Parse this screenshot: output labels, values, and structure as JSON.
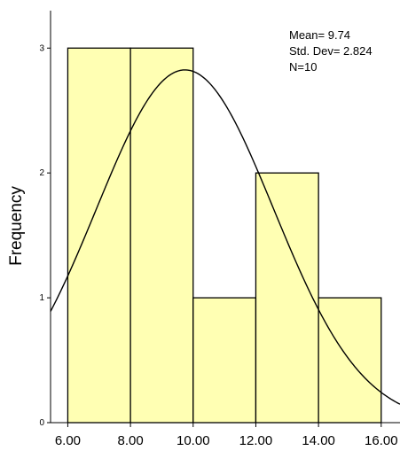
{
  "chart_data": {
    "type": "bar",
    "subtype": "histogram",
    "ylabel": "Frequency",
    "xlabel": "",
    "bins": [
      {
        "start": 6,
        "end": 8,
        "count": 3
      },
      {
        "start": 8,
        "end": 10,
        "count": 3
      },
      {
        "start": 10,
        "end": 12,
        "count": 1
      },
      {
        "start": 12,
        "end": 14,
        "count": 2
      },
      {
        "start": 14,
        "end": 16,
        "count": 1
      }
    ],
    "x_ticks": [
      {
        "value": 6,
        "label": "6.00"
      },
      {
        "value": 8,
        "label": "8.00"
      },
      {
        "value": 10,
        "label": "10.00"
      },
      {
        "value": 12,
        "label": "12.00"
      },
      {
        "value": 14,
        "label": "14.00"
      },
      {
        "value": 16,
        "label": "16.00"
      }
    ],
    "y_ticks": [
      {
        "value": 0,
        "label": "0"
      },
      {
        "value": 1,
        "label": "1"
      },
      {
        "value": 2,
        "label": "2"
      },
      {
        "value": 3,
        "label": "3"
      }
    ],
    "xlim": [
      5.45,
      16.6
    ],
    "ylim": [
      0,
      3.3
    ],
    "stats": {
      "mean_text": "Mean= 9.74",
      "std_text": "Std. Dev= 2.824",
      "n_text": "N=10"
    },
    "normal_curve": {
      "mean": 9.74,
      "std": 2.824,
      "n": 10,
      "bin_width": 2
    },
    "colors": {
      "bar_fill": "#ffffb3",
      "bar_stroke": "#000000",
      "curve": "#000000",
      "axis": "#000000"
    },
    "grid": false
  }
}
